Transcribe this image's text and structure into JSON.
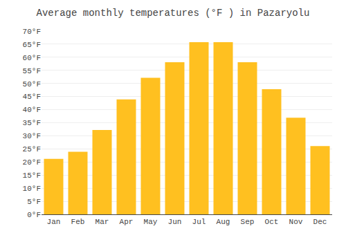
{
  "chart_data": {
    "type": "bar",
    "title": "Average monthly temperatures (°F ) in Pazaryolu",
    "categories": [
      "Jan",
      "Feb",
      "Mar",
      "Apr",
      "May",
      "Jun",
      "Jul",
      "Aug",
      "Sep",
      "Oct",
      "Nov",
      "Dec"
    ],
    "values": [
      21.2,
      23.9,
      32.2,
      43.9,
      52.2,
      58.1,
      65.8,
      65.8,
      58.1,
      47.8,
      36.9,
      26.1
    ],
    "color": "#FFC020",
    "ylim": [
      0,
      70
    ],
    "yticks": [
      {
        "value": 0,
        "label": "0°F"
      },
      {
        "value": 5,
        "label": "5°F"
      },
      {
        "value": 10,
        "label": "10°F"
      },
      {
        "value": 15,
        "label": "15°F"
      },
      {
        "value": 20,
        "label": "20°F"
      },
      {
        "value": 25,
        "label": "25°F"
      },
      {
        "value": 30,
        "label": "30°F"
      },
      {
        "value": 35,
        "label": "35°F"
      },
      {
        "value": 40,
        "label": "40°F"
      },
      {
        "value": 45,
        "label": "45°F"
      },
      {
        "value": 50,
        "label": "50°F"
      },
      {
        "value": 55,
        "label": "55°F"
      },
      {
        "value": 60,
        "label": "60°F"
      },
      {
        "value": 65,
        "label": "65°F"
      },
      {
        "value": 70,
        "label": "70°F"
      }
    ],
    "grid": true
  }
}
